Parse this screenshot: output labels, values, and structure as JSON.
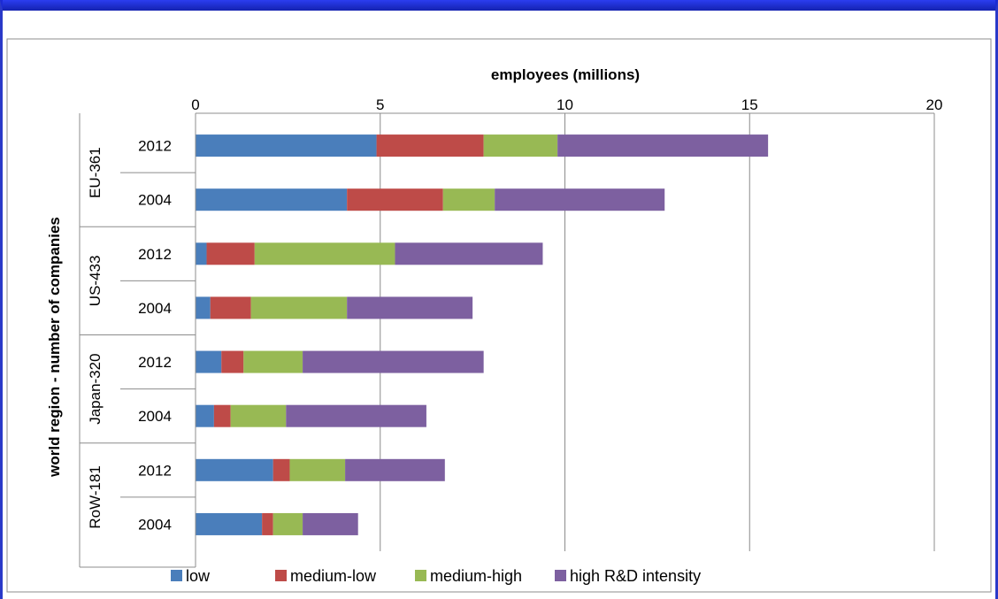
{
  "chart_data": {
    "type": "bar",
    "orientation": "horizontal",
    "stacked": true,
    "title": "",
    "xlabel": "employees (millions)",
    "ylabel": "world region - number of companies",
    "xlim": [
      0,
      20
    ],
    "xticks": [
      0,
      5,
      10,
      15,
      20
    ],
    "grid": true,
    "legend_position": "bottom",
    "groups": [
      {
        "name": "EU-361",
        "categories": [
          "2012",
          "2004"
        ]
      },
      {
        "name": "US-433",
        "categories": [
          "2012",
          "2004"
        ]
      },
      {
        "name": "Japan-320",
        "categories": [
          "2012",
          "2004"
        ]
      },
      {
        "name": "RoW-181",
        "categories": [
          "2012",
          "2004"
        ]
      }
    ],
    "series": [
      {
        "name": "low",
        "color": "#4a7ebb",
        "values": [
          4.9,
          4.1,
          0.3,
          0.4,
          0.7,
          0.5,
          2.1,
          1.8
        ]
      },
      {
        "name": "medium-low",
        "color": "#be4b48",
        "values": [
          2.9,
          2.6,
          1.3,
          1.1,
          0.6,
          0.45,
          0.45,
          0.3
        ]
      },
      {
        "name": "medium-high",
        "color": "#98b954",
        "values": [
          2.0,
          1.4,
          3.8,
          2.6,
          1.6,
          1.5,
          1.5,
          0.8
        ]
      },
      {
        "name": "high R&D intensity",
        "color": "#7d60a0",
        "values": [
          5.7,
          4.6,
          4.0,
          3.4,
          4.9,
          3.8,
          2.7,
          1.5
        ]
      }
    ]
  }
}
